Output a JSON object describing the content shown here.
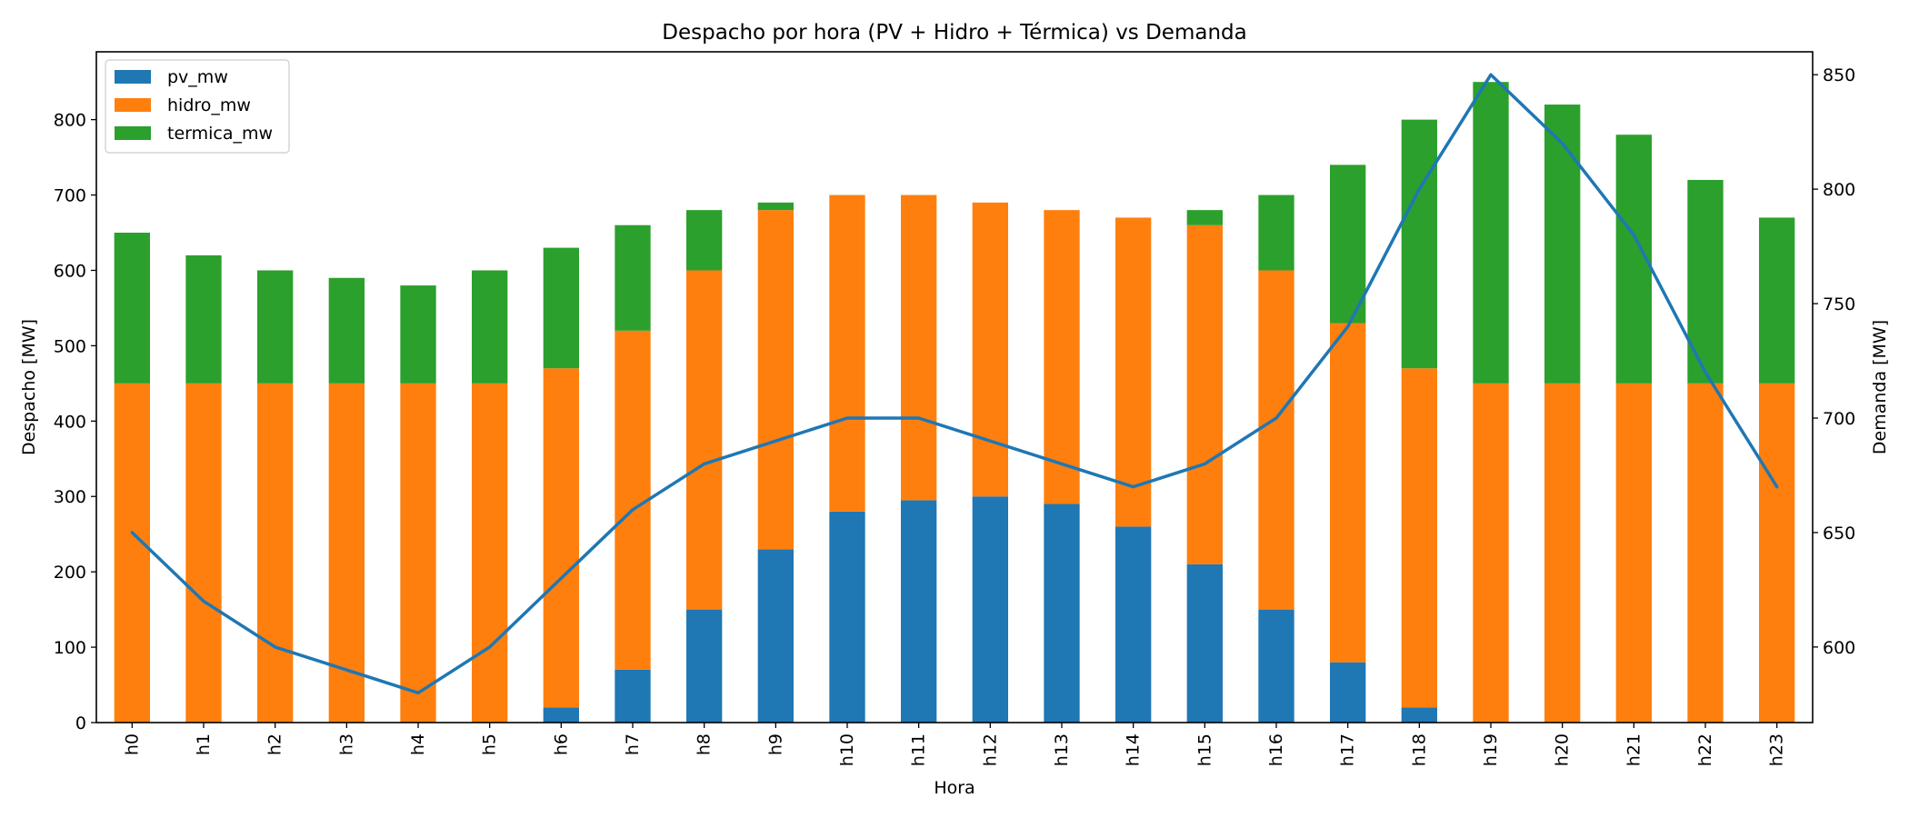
{
  "chart_data": {
    "type": "bar",
    "stacked": true,
    "title": "Despacho por hora (PV + Hidro + Térmica) vs Demanda",
    "xlabel": "Hora",
    "ylabel": "Despacho [MW]",
    "y2label": "Demanda [MW]",
    "ylim": [
      0,
      890
    ],
    "y2lim": [
      567,
      860
    ],
    "yticks": [
      0,
      100,
      200,
      300,
      400,
      500,
      600,
      700,
      800
    ],
    "y2ticks": [
      600,
      650,
      700,
      750,
      800,
      850
    ],
    "categories": [
      "h0",
      "h1",
      "h2",
      "h3",
      "h4",
      "h5",
      "h6",
      "h7",
      "h8",
      "h9",
      "h10",
      "h11",
      "h12",
      "h13",
      "h14",
      "h15",
      "h16",
      "h17",
      "h18",
      "h19",
      "h20",
      "h21",
      "h22",
      "h23"
    ],
    "series": [
      {
        "name": "pv_mw",
        "color": "#1f77b4",
        "values": [
          0,
          0,
          0,
          0,
          0,
          0,
          20,
          70,
          150,
          230,
          280,
          295,
          300,
          290,
          260,
          210,
          150,
          80,
          20,
          0,
          0,
          0,
          0,
          0
        ]
      },
      {
        "name": "hidro_mw",
        "color": "#ff7f0e",
        "values": [
          450,
          450,
          450,
          450,
          450,
          450,
          450,
          450,
          450,
          450,
          420,
          405,
          390,
          390,
          410,
          450,
          450,
          450,
          450,
          450,
          450,
          450,
          450,
          450
        ]
      },
      {
        "name": "termica_mw",
        "color": "#2ca02c",
        "values": [
          200,
          170,
          150,
          140,
          130,
          150,
          160,
          140,
          80,
          10,
          0,
          0,
          0,
          0,
          0,
          20,
          100,
          210,
          330,
          400,
          370,
          330,
          270,
          220
        ]
      }
    ],
    "line_series": {
      "name": "demanda",
      "color": "#1f77b4",
      "axis": "right",
      "values": [
        650,
        620,
        600,
        590,
        580,
        600,
        630,
        660,
        680,
        690,
        700,
        700,
        690,
        680,
        670,
        680,
        700,
        740,
        800,
        850,
        820,
        780,
        720,
        670
      ]
    },
    "legend": "top-left",
    "grid": false
  }
}
